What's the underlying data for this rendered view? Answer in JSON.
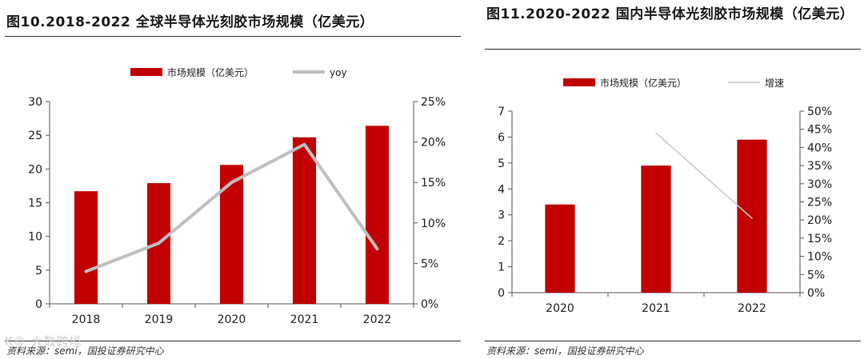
{
  "chart_data": [
    {
      "type": "bar",
      "title": "图10.2018-2022 全球半导体光刻胶市场规模（亿美元）",
      "categories": [
        "2018",
        "2019",
        "2020",
        "2021",
        "2022"
      ],
      "series": [
        {
          "name": "市场规模（亿美元）",
          "type": "bar",
          "axis": "left",
          "values": [
            16.7,
            17.9,
            20.6,
            24.7,
            26.4
          ]
        },
        {
          "name": "yoy",
          "type": "line",
          "axis": "right",
          "values": [
            0.04,
            0.075,
            0.15,
            0.197,
            0.068
          ]
        }
      ],
      "yleft": {
        "ylim": [
          0,
          30
        ],
        "ticks": [
          "0",
          "5",
          "10",
          "15",
          "20",
          "25",
          "30"
        ]
      },
      "yright": {
        "ylim": [
          0,
          0.25
        ],
        "ticks": [
          "0%",
          "5%",
          "10%",
          "15%",
          "20%",
          "25%"
        ]
      },
      "legend": "top-center",
      "grid": false,
      "source": "资料来源：semi，国投证券研究中心"
    },
    {
      "type": "bar",
      "title": "图11.2020-2022 国内半导体光刻胶市场规模（亿美元）",
      "categories": [
        "2020",
        "2021",
        "2022"
      ],
      "series": [
        {
          "name": "市场规模（亿美元）",
          "type": "bar",
          "axis": "left",
          "values": [
            3.4,
            4.9,
            5.9
          ]
        },
        {
          "name": "增速",
          "type": "line",
          "axis": "right",
          "values": [
            null,
            0.44,
            0.205
          ]
        }
      ],
      "yleft": {
        "ylim": [
          0,
          7
        ],
        "ticks": [
          "0",
          "1",
          "2",
          "3",
          "4",
          "5",
          "6",
          "7"
        ]
      },
      "yright": {
        "ylim": [
          0,
          0.5
        ],
        "ticks": [
          "0%",
          "5%",
          "10%",
          "15%",
          "20%",
          "25%",
          "30%",
          "35%",
          "40%",
          "45%",
          "50%"
        ]
      },
      "legend": "top-center",
      "grid": false,
      "source": "资料来源：semi，国投证券研究中心"
    }
  ],
  "colors": {
    "bar": "#c00000",
    "line_left": "#bfbfbf",
    "line_right": "#c9c9c9"
  },
  "watermark": "K© 大数跨境"
}
